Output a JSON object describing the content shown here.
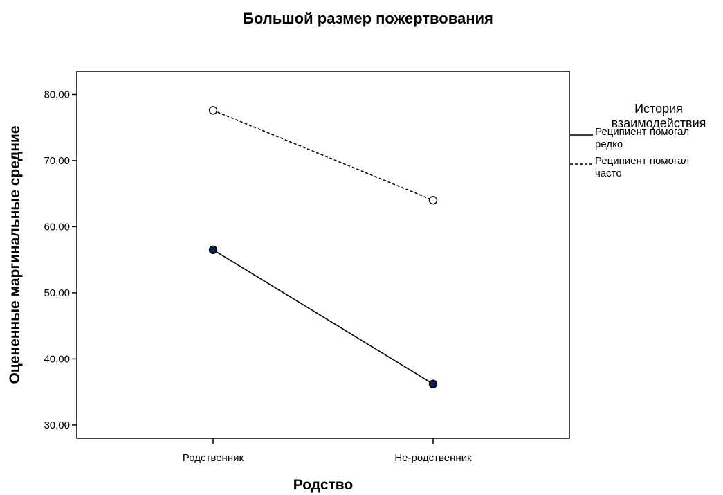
{
  "chart_data": {
    "type": "line",
    "title": "Большой размер пожертвования",
    "xlabel": "Родство",
    "ylabel": "Оцененные маргинальные средние",
    "categories": [
      "Родственник",
      "Не-родственник"
    ],
    "ylim": [
      28,
      83.5
    ],
    "yticks": [
      "30,00",
      "40,00",
      "50,00",
      "60,00",
      "70,00",
      "80,00"
    ],
    "ytick_values": [
      30,
      40,
      50,
      60,
      70,
      80
    ],
    "grid": false,
    "legend_position": "right",
    "legend_title_lines": [
      "История",
      "взаимодействия"
    ],
    "series": [
      {
        "name": "Реципиент помогал редко",
        "name_lines": [
          "Реципиент помогал",
          "редко"
        ],
        "values": [
          56.5,
          36.2
        ],
        "line_style": "solid",
        "marker": "filled-circle",
        "marker_color": "#0b1f4d"
      },
      {
        "name": "Реципиент помогал часто",
        "name_lines": [
          "Реципиент помогал",
          "часто"
        ],
        "values": [
          77.6,
          64.0
        ],
        "line_style": "dashed",
        "marker": "open-circle",
        "marker_color": "#ffffff"
      }
    ]
  }
}
